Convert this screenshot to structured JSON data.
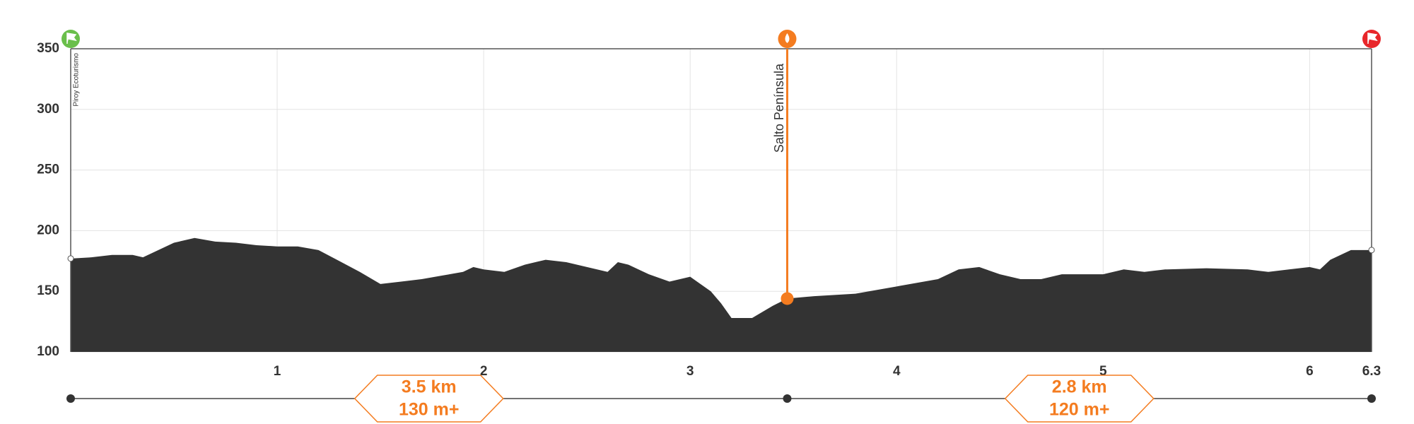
{
  "chart_data": {
    "type": "area",
    "x": [
      0,
      0.1,
      0.2,
      0.3,
      0.35,
      0.4,
      0.5,
      0.6,
      0.7,
      0.8,
      0.9,
      1.0,
      1.1,
      1.2,
      1.3,
      1.4,
      1.5,
      1.6,
      1.7,
      1.8,
      1.9,
      1.95,
      2.0,
      2.1,
      2.2,
      2.3,
      2.4,
      2.5,
      2.6,
      2.65,
      2.7,
      2.8,
      2.9,
      3.0,
      3.1,
      3.15,
      3.2,
      3.3,
      3.4,
      3.47,
      3.6,
      3.8,
      4.0,
      4.2,
      4.3,
      4.4,
      4.5,
      4.6,
      4.7,
      4.8,
      5.0,
      5.1,
      5.2,
      5.3,
      5.5,
      5.7,
      5.8,
      5.9,
      6.0,
      6.05,
      6.1,
      6.2,
      6.3
    ],
    "y": [
      177,
      178,
      180,
      180,
      178,
      182,
      190,
      194,
      191,
      190,
      188,
      187,
      187,
      184,
      175,
      166,
      156,
      158,
      160,
      163,
      166,
      170,
      168,
      166,
      172,
      176,
      174,
      170,
      166,
      174,
      172,
      164,
      158,
      162,
      150,
      140,
      128,
      128,
      138,
      144,
      146,
      148,
      154,
      160,
      168,
      170,
      164,
      160,
      160,
      164,
      164,
      168,
      166,
      168,
      169,
      168,
      166,
      168,
      170,
      168,
      176,
      184,
      184
    ],
    "color": "#333333",
    "xlim": [
      0,
      6.3
    ],
    "xticks": [
      1,
      2,
      3,
      4,
      5,
      6,
      6.3
    ],
    "ylim": [
      100,
      350
    ],
    "yticks": [
      100,
      150,
      200,
      250,
      300,
      350
    ],
    "grid": true,
    "waypoints": [
      {
        "name": "Piroy Ecoturismo",
        "x": 0,
        "color": "#6abf4b"
      },
      {
        "name": "Salto Península",
        "x": 3.47,
        "elevation": 144,
        "color": "#f47c20"
      },
      {
        "x": 6.3,
        "color": "#e8262a"
      }
    ],
    "segments": [
      {
        "distance": "3.5 km",
        "gain": "130 m+"
      },
      {
        "distance": "2.8 km",
        "gain": "120 m+"
      }
    ]
  }
}
